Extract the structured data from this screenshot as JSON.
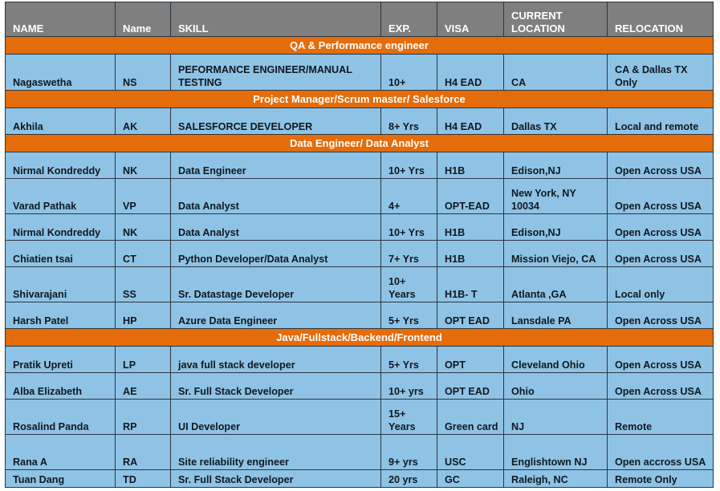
{
  "headers": [
    "NAME",
    "Name",
    "SKILL",
    "EXP.",
    "VISA",
    "CURRENT LOCATION",
    "RELOCATION"
  ],
  "sections": [
    {
      "title": "QA & Performance engineer",
      "rows": [
        [
          "Nagaswetha",
          "NS",
          "PEFORMANCE ENGINEER/MANUAL TESTING",
          "10+",
          "H4 EAD",
          "CA",
          "CA & Dallas TX Only"
        ]
      ]
    },
    {
      "title": "Project Manager/Scrum master/ Salesforce",
      "rows": [
        [
          "Akhila",
          "AK",
          "SALESFORCE DEVELOPER",
          "8+ Yrs",
          "H4 EAD",
          "Dallas TX",
          "Local and remote"
        ]
      ]
    },
    {
      "title": "Data Engineer/ Data Analyst",
      "rows": [
        [
          "Nirmal Kondreddy",
          "NK",
          "Data Engineer",
          "10+ Yrs",
          "H1B",
          "Edison,NJ",
          "Open Across USA"
        ],
        [
          "Varad Pathak",
          "VP",
          "Data Analyst",
          "4+",
          "OPT-EAD",
          "New York, NY 10034",
          "Open Across USA"
        ],
        [
          "Nirmal Kondreddy",
          "NK",
          "Data Analyst",
          "10+ Yrs",
          "H1B",
          "Edison,NJ",
          "Open Across USA"
        ],
        [
          "Chiatien tsai",
          "CT",
          "Python Developer/Data Analyst",
          "7+ Yrs",
          "H1B",
          "Mission Viejo, CA",
          "Open Across USA"
        ],
        [
          "Shivarajani",
          "SS",
          "Sr. Datastage Developer",
          "10+ Years",
          "H1B- T",
          "Atlanta ,GA",
          "Local only"
        ],
        [
          "Harsh Patel",
          "HP",
          "Azure Data Engineer",
          "5+ Yrs",
          "OPT EAD",
          "Lansdale PA",
          "Open Across USA"
        ]
      ]
    },
    {
      "title": "Java/Fullstack/Backend/Frontend",
      "rows": [
        [
          "Pratik Upreti",
          "LP",
          "java full stack developer",
          "5+ Yrs",
          "OPT",
          "Cleveland Ohio",
          "Open Across USA"
        ],
        [
          "Alba Elizabeth",
          "AE",
          "Sr. Full Stack Developer",
          "10+ yrs",
          "OPT EAD",
          "Ohio",
          "Open Across USA"
        ],
        [
          "Rosalind Panda",
          "RP",
          "UI Developer",
          "15+ Years",
          "Green card",
          "NJ",
          "Remote"
        ],
        [
          "Rana A",
          "RA",
          "Site reliability engineer",
          "9+ yrs",
          "USC",
          "Englishtown NJ",
          "Open accross USA"
        ],
        [
          "Tuan Dang",
          "TD",
          "Sr. Full Stack Developer",
          "20 yrs",
          "GC",
          "Raleigh, NC",
          "Remote Only"
        ]
      ]
    }
  ]
}
